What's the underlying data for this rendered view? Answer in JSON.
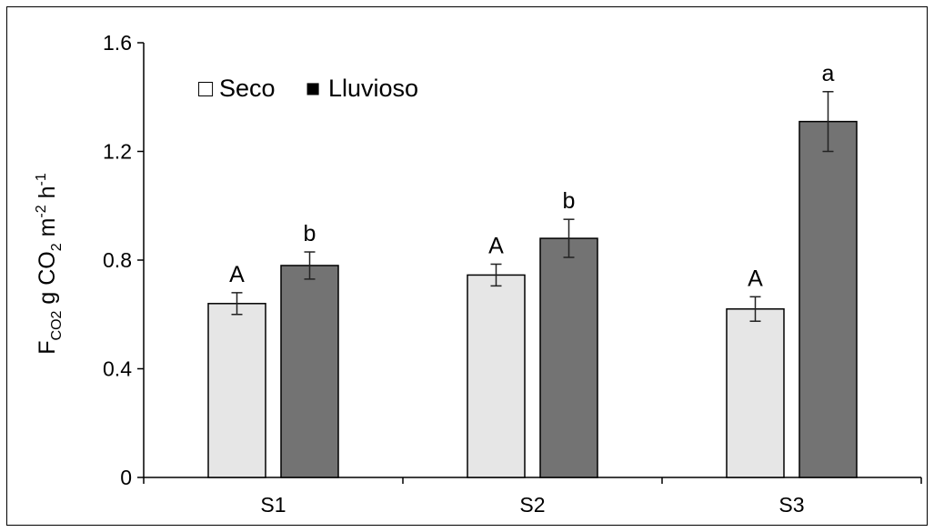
{
  "chart_data": {
    "type": "bar",
    "categories": [
      "S1",
      "S2",
      "S3"
    ],
    "series": [
      {
        "name": "Seco",
        "values": [
          0.64,
          0.745,
          0.62
        ],
        "errors": [
          0.04,
          0.04,
          0.045
        ],
        "letters": [
          "A",
          "A",
          "A"
        ],
        "color": "#E6E6E6"
      },
      {
        "name": "Lluvioso",
        "values": [
          0.78,
          0.88,
          1.31
        ],
        "errors": [
          0.05,
          0.07,
          0.11
        ],
        "letters": [
          "b",
          "b",
          "a"
        ],
        "color": "#737373"
      }
    ],
    "ylabel": {
      "base": "F",
      "base_sub": "CO2",
      "mid1": " g CO",
      "mid1_sub": "2",
      "mid2": " m",
      "mid2_sup": "-2",
      "mid3": " h",
      "mid3_sup": "-1"
    },
    "ylim": [
      0,
      1.6
    ],
    "yticks": [
      "0",
      "0.4",
      "0.8",
      "1.2",
      "1.6"
    ],
    "ytick_values": [
      0,
      0.4,
      0.8,
      1.2,
      1.6
    ],
    "grid": false,
    "legend_position": "top-left",
    "legend_marker_seco": "□",
    "legend_marker_lluvioso": "■"
  }
}
